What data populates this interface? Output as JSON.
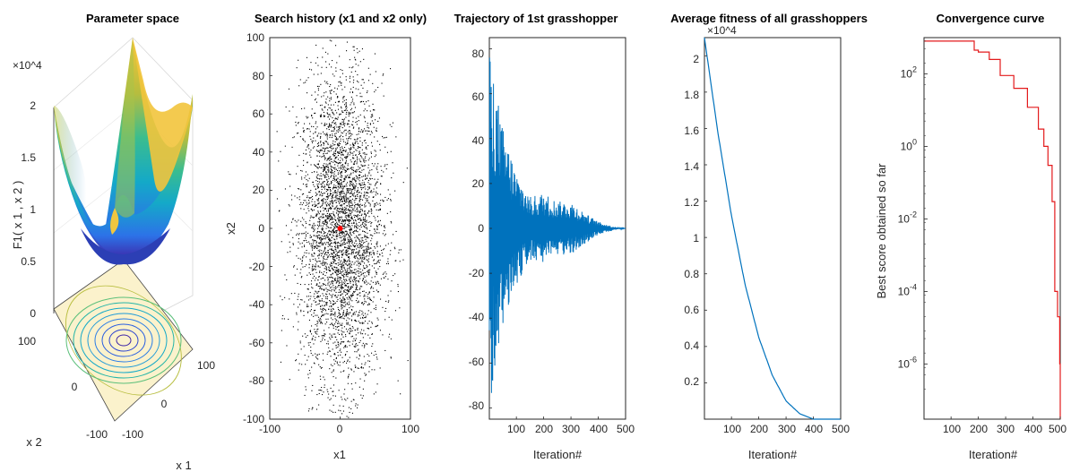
{
  "charts": {
    "parameter_space": {
      "title": "Parameter space",
      "zlabel": "F1( x 1 , x 2 )",
      "z_exponent": "×10^4",
      "z_ticks": [
        "0",
        "0.5",
        "1",
        "1.5",
        "2"
      ],
      "x_ticks": [
        "100",
        "0",
        "-100"
      ],
      "y_ticks": [
        "-100",
        "0",
        "100"
      ],
      "xlabel": "x 1",
      "ylabel": "x 2"
    },
    "search_history": {
      "title": "Search history (x1 and x2 only)",
      "xlabel": "x1",
      "ylabel": "x2",
      "x_ticks": [
        "-100",
        "0",
        "100"
      ],
      "y_ticks": [
        "100",
        "80",
        "60",
        "40",
        "20",
        "0",
        "-20",
        "-40",
        "-60",
        "-80",
        "-100"
      ]
    },
    "trajectory": {
      "title": "Trajectory of 1st grasshopper",
      "xlabel": "Iteration#",
      "x_ticks": [
        "100",
        "200",
        "300",
        "400",
        "500"
      ],
      "y_ticks": [
        "80",
        "60",
        "40",
        "20",
        "0",
        "-20",
        "-40",
        "-60",
        "-80"
      ]
    },
    "average_fitness": {
      "title": "Average fitness of all grasshoppers",
      "xlabel": "Iteration#",
      "exponent": "×10^4",
      "x_ticks": [
        "100",
        "200",
        "300",
        "400",
        "500"
      ],
      "y_ticks": [
        "2",
        "1.8",
        "1.6",
        "1.4",
        "1.2",
        "1",
        "0.8",
        "0.6",
        "0.4",
        "0.2"
      ]
    },
    "convergence": {
      "title": "Convergence curve",
      "xlabel": "Iteration#",
      "ylabel": "Best score obtained so far",
      "x_ticks": [
        "100",
        "200",
        "300",
        "400",
        "500"
      ],
      "y_ticks": [
        "10^2",
        "10^0",
        "10^-2",
        "10^-4",
        "10^-6"
      ]
    }
  },
  "chart_data": [
    {
      "type": "surface",
      "title": "Parameter space",
      "zlabel": "F1( x 1 , x 2 )",
      "function": "x1^2 + x2^2",
      "xlim": [
        -100,
        100
      ],
      "ylim": [
        -100,
        100
      ],
      "zlim": [
        0,
        20000
      ],
      "colormap": "parula",
      "contours_below": true
    },
    {
      "type": "scatter",
      "title": "Search history (x1 and x2 only)",
      "xlabel": "x1",
      "ylabel": "x2",
      "xlim": [
        -100,
        100
      ],
      "ylim": [
        -100,
        100
      ],
      "points_color": "#000000",
      "best_point": {
        "x": 0,
        "y": 0,
        "color": "#ff0000"
      },
      "distribution": "dense cloud centered at (0,0), spread ~ +/-50 on x1, +/-100 on x2"
    },
    {
      "type": "line",
      "title": "Trajectory of 1st grasshopper",
      "xlabel": "Iteration#",
      "xlim": [
        1,
        500
      ],
      "ylim": [
        -85,
        85
      ],
      "color": "#0072bd",
      "envelope": {
        "x": [
          1,
          50,
          100,
          150,
          200,
          250,
          300,
          350,
          400,
          450,
          500
        ],
        "y": [
          80,
          45,
          25,
          14,
          16,
          12,
          12,
          7,
          3,
          1,
          0
        ]
      }
    },
    {
      "type": "line",
      "title": "Average fitness of all grasshoppers",
      "xlabel": "Iteration#",
      "xlim": [
        1,
        500
      ],
      "ylim": [
        0,
        21000
      ],
      "color": "#0072bd",
      "x": [
        1,
        50,
        100,
        150,
        200,
        250,
        300,
        350,
        400,
        450,
        500
      ],
      "y": [
        21000,
        15800,
        11200,
        7400,
        4500,
        2400,
        1000,
        300,
        0,
        0,
        0
      ]
    },
    {
      "type": "line",
      "title": "Convergence curve",
      "xlabel": "Iteration#",
      "ylabel": "Best score obtained so far",
      "yscale": "log",
      "xlim": [
        1,
        500
      ],
      "ylim": [
        3e-08,
        1000
      ],
      "color": "#e31a1c",
      "x": [
        1,
        175,
        185,
        200,
        240,
        280,
        330,
        380,
        420,
        440,
        455,
        470,
        480,
        490,
        498,
        500
      ],
      "y": [
        800,
        800,
        450,
        400,
        250,
        90,
        40,
        12,
        3,
        1,
        0.3,
        0.03,
        0.0001,
        2e-05,
        1e-06,
        3e-08
      ]
    }
  ]
}
